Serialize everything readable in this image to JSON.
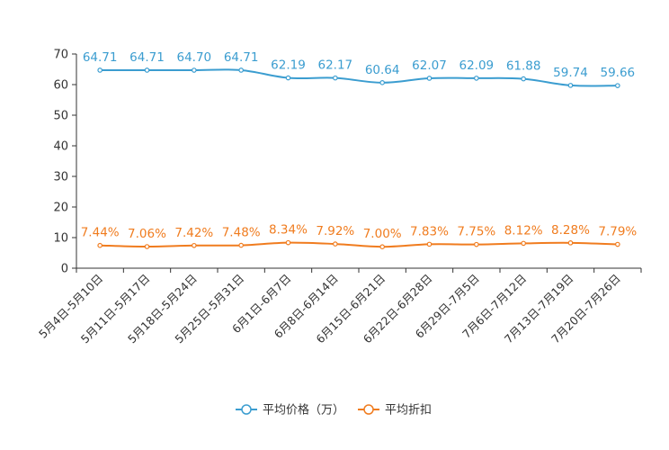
{
  "chart_data": {
    "type": "line",
    "categories": [
      "5月4日-5月10日",
      "5月11日-5月17日",
      "5月18日-5月24日",
      "5月25日-5月31日",
      "6月1日-6月7日",
      "6月8日-6月14日",
      "6月15日-6月21日",
      "6月22日-6月28日",
      "6月29日-7月5日",
      "7月6日-7月12日",
      "7月13日-7月19日",
      "7月20日-7月26日"
    ],
    "ylim": [
      0,
      70
    ],
    "yticks": [
      0,
      10,
      20,
      30,
      40,
      50,
      60,
      70
    ],
    "series": [
      {
        "name": "平均价格（万）",
        "color": "#3b9dd0",
        "values": [
          64.71,
          64.71,
          64.7,
          64.71,
          62.19,
          62.17,
          60.64,
          62.07,
          62.09,
          61.88,
          59.74,
          59.66
        ],
        "labels": [
          "64.71",
          "64.71",
          "64.70",
          "64.71",
          "62.19",
          "62.17",
          "60.64",
          "62.07",
          "62.09",
          "61.88",
          "59.74",
          "59.66"
        ]
      },
      {
        "name": "平均折扣",
        "color": "#f07c1f",
        "values": [
          7.44,
          7.06,
          7.42,
          7.48,
          8.34,
          7.92,
          7.0,
          7.83,
          7.75,
          8.12,
          8.28,
          7.79
        ],
        "labels": [
          "7.44%",
          "7.06%",
          "7.42%",
          "7.48%",
          "8.34%",
          "7.92%",
          "7.00%",
          "7.83%",
          "7.75%",
          "8.12%",
          "8.28%",
          "7.79%"
        ]
      }
    ],
    "legend_position": "bottom-center",
    "grid": false
  }
}
